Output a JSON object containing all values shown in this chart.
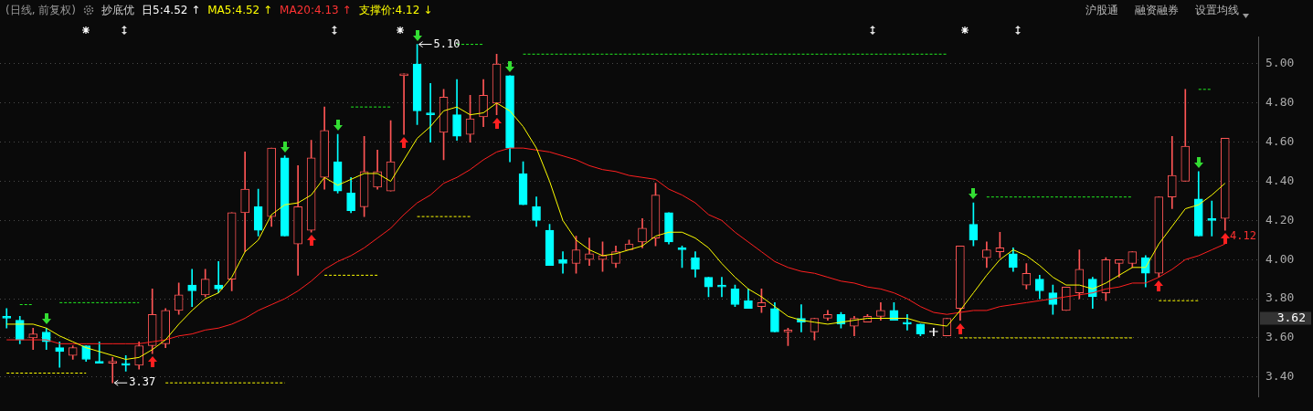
{
  "chart_data": {
    "type": "candlestick",
    "subtitle": "(日线, 前复权)",
    "categories": [
      null,
      null,
      null,
      null,
      null,
      null,
      null,
      null,
      null,
      null,
      null,
      null,
      null,
      null,
      null,
      null,
      null,
      null,
      null,
      null,
      null,
      null,
      null,
      null,
      null,
      null,
      null,
      null,
      null,
      null,
      null,
      null,
      null,
      null,
      null,
      null,
      null,
      null,
      null,
      null,
      null,
      null,
      null,
      null,
      null,
      null,
      null,
      null,
      null,
      null,
      null,
      null,
      null,
      null,
      null,
      null,
      null,
      null,
      null,
      null,
      null,
      null,
      null,
      null,
      null,
      null,
      null,
      null,
      null,
      null,
      null,
      null,
      null,
      null,
      null,
      null,
      null,
      null,
      null,
      null,
      null,
      null,
      null,
      null,
      null,
      null,
      null,
      null,
      null,
      null,
      null,
      null,
      null
    ],
    "ohlc": [
      [
        3.71,
        3.75,
        3.65,
        3.7
      ],
      [
        3.69,
        3.71,
        3.57,
        3.59
      ],
      [
        3.6,
        3.65,
        3.54,
        3.62
      ],
      [
        3.63,
        3.65,
        3.54,
        3.58
      ],
      [
        3.55,
        3.58,
        3.45,
        3.53
      ],
      [
        3.51,
        3.56,
        3.49,
        3.55
      ],
      [
        3.56,
        3.56,
        3.48,
        3.49
      ],
      [
        3.48,
        3.58,
        3.47,
        3.47
      ],
      [
        3.47,
        3.5,
        3.37,
        3.48
      ],
      [
        3.47,
        3.51,
        3.43,
        3.46
      ],
      [
        3.46,
        3.58,
        3.44,
        3.56
      ],
      [
        3.56,
        3.85,
        3.52,
        3.72
      ],
      [
        3.57,
        3.75,
        3.55,
        3.74
      ],
      [
        3.74,
        3.88,
        3.72,
        3.82
      ],
      [
        3.87,
        3.95,
        3.76,
        3.84
      ],
      [
        3.82,
        3.95,
        3.81,
        3.9
      ],
      [
        3.87,
        3.99,
        3.83,
        3.85
      ],
      [
        3.9,
        4.24,
        3.84,
        4.24
      ],
      [
        4.24,
        4.55,
        4.04,
        4.36
      ],
      [
        4.27,
        4.36,
        4.12,
        4.15
      ],
      [
        4.22,
        4.57,
        4.17,
        4.57
      ],
      [
        4.52,
        4.53,
        4.12,
        4.12
      ],
      [
        4.08,
        4.48,
        3.92,
        4.27
      ],
      [
        4.15,
        4.61,
        4.14,
        4.52
      ],
      [
        4.42,
        4.78,
        4.36,
        4.66
      ],
      [
        4.5,
        4.64,
        4.34,
        4.35
      ],
      [
        4.34,
        4.42,
        4.24,
        4.25
      ],
      [
        4.27,
        4.63,
        4.22,
        4.45
      ],
      [
        4.37,
        4.56,
        4.36,
        4.45
      ],
      [
        4.35,
        4.71,
        4.35,
        4.5
      ],
      [
        4.94,
        4.95,
        4.64,
        4.95
      ],
      [
        5.0,
        5.1,
        4.69,
        4.76
      ],
      [
        4.75,
        4.9,
        4.6,
        4.74
      ],
      [
        4.65,
        4.87,
        4.51,
        4.83
      ],
      [
        4.74,
        4.92,
        4.61,
        4.63
      ],
      [
        4.64,
        4.84,
        4.6,
        4.72
      ],
      [
        4.73,
        4.92,
        4.68,
        4.84
      ],
      [
        4.8,
        5.05,
        4.74,
        5.0
      ],
      [
        4.94,
        4.94,
        4.5,
        4.57
      ],
      [
        4.44,
        4.5,
        4.28,
        4.28
      ],
      [
        4.27,
        4.32,
        4.17,
        4.2
      ],
      [
        4.15,
        4.18,
        3.97,
        3.97
      ],
      [
        4.0,
        4.04,
        3.93,
        3.98
      ],
      [
        3.98,
        4.12,
        3.93,
        4.05
      ],
      [
        4.0,
        4.11,
        3.97,
        4.03
      ],
      [
        4.0,
        4.09,
        3.94,
        4.02
      ],
      [
        3.98,
        4.07,
        3.96,
        4.04
      ],
      [
        4.05,
        4.1,
        4.05,
        4.08
      ],
      [
        4.09,
        4.21,
        4.06,
        4.16
      ],
      [
        4.11,
        4.39,
        4.07,
        4.33
      ],
      [
        4.24,
        4.24,
        4.08,
        4.09
      ],
      [
        4.06,
        4.07,
        3.96,
        4.05
      ],
      [
        4.01,
        4.04,
        3.91,
        3.95
      ],
      [
        3.91,
        3.91,
        3.81,
        3.86
      ],
      [
        3.87,
        3.91,
        3.81,
        3.86
      ],
      [
        3.85,
        3.87,
        3.76,
        3.77
      ],
      [
        3.79,
        3.85,
        3.75,
        3.75
      ],
      [
        3.76,
        3.85,
        3.73,
        3.78
      ],
      [
        3.75,
        3.78,
        3.63,
        3.63
      ],
      [
        3.63,
        3.65,
        3.56,
        3.64
      ],
      [
        3.7,
        3.77,
        3.63,
        3.68
      ],
      [
        3.63,
        3.7,
        3.59,
        3.7
      ],
      [
        3.7,
        3.74,
        3.69,
        3.72
      ],
      [
        3.72,
        3.73,
        3.65,
        3.67
      ],
      [
        3.66,
        3.71,
        3.61,
        3.7
      ],
      [
        3.68,
        3.72,
        3.68,
        3.71
      ],
      [
        3.71,
        3.78,
        3.69,
        3.74
      ],
      [
        3.74,
        3.78,
        3.69,
        3.69
      ],
      [
        3.68,
        3.72,
        3.64,
        3.67
      ],
      [
        3.67,
        3.67,
        3.61,
        3.62
      ],
      [
        3.63,
        3.65,
        3.61,
        3.63
      ],
      [
        3.61,
        3.7,
        3.61,
        3.7
      ],
      [
        3.75,
        4.07,
        3.69,
        4.07
      ],
      [
        4.18,
        4.29,
        4.07,
        4.1
      ],
      [
        4.01,
        4.09,
        3.96,
        4.05
      ],
      [
        4.04,
        4.14,
        4.01,
        4.06
      ],
      [
        4.03,
        4.06,
        3.94,
        3.96
      ],
      [
        3.87,
        3.98,
        3.85,
        3.93
      ],
      [
        3.9,
        3.92,
        3.8,
        3.84
      ],
      [
        3.83,
        3.87,
        3.72,
        3.77
      ],
      [
        3.74,
        3.86,
        3.74,
        3.86
      ],
      [
        3.83,
        4.05,
        3.8,
        3.95
      ],
      [
        3.9,
        3.91,
        3.75,
        3.81
      ],
      [
        3.83,
        4.01,
        3.79,
        4.0
      ],
      [
        3.98,
        4.0,
        3.91,
        4.0
      ],
      [
        3.98,
        4.04,
        3.96,
        4.04
      ],
      [
        4.01,
        4.02,
        3.86,
        3.93
      ],
      [
        3.93,
        4.32,
        3.91,
        4.32
      ],
      [
        4.32,
        4.63,
        4.26,
        4.43
      ],
      [
        4.4,
        4.87,
        4.4,
        4.58
      ],
      [
        4.31,
        4.45,
        4.12,
        4.12
      ],
      [
        4.21,
        4.3,
        4.12,
        4.2
      ],
      [
        4.21,
        4.62,
        4.15,
        4.62
      ]
    ],
    "colors": [
      "#00ffff",
      "#00ffff",
      "#ff5555",
      "#00ffff",
      "#00ffff",
      "#ff5555",
      "#00ffff",
      "#00ffff",
      "#ff5555",
      "#00ffff",
      "#ff5555",
      "#ff5555",
      "#ff5555",
      "#ff5555",
      "#00ffff",
      "#ff5555",
      "#00ffff",
      "#ff5555",
      "#ff5555",
      "#00ffff",
      "#ff5555",
      "#00ffff",
      "#ff5555",
      "#ff5555",
      "#ff5555",
      "#00ffff",
      "#00ffff",
      "#ff5555",
      "#ff5555",
      "#ff5555",
      "#ff5555",
      "#00ffff",
      "#00ffff",
      "#ff5555",
      "#00ffff",
      "#ff5555",
      "#ff5555",
      "#ff5555",
      "#00ffff",
      "#00ffff",
      "#00ffff",
      "#00ffff",
      "#00ffff",
      "#ff5555",
      "#ff5555",
      "#ff5555",
      "#ff5555",
      "#ff5555",
      "#ff5555",
      "#ff5555",
      "#00ffff",
      "#00ffff",
      "#00ffff",
      "#00ffff",
      "#00ffff",
      "#00ffff",
      "#00ffff",
      "#ff5555",
      "#00ffff",
      "#ff5555",
      "#00ffff",
      "#ff5555",
      "#ff5555",
      "#00ffff",
      "#ff5555",
      "#ff5555",
      "#ff5555",
      "#00ffff",
      "#00ffff",
      "#00ffff",
      "#ffffff",
      "#ff5555",
      "#ff5555",
      "#00ffff",
      "#ff5555",
      "#ff5555",
      "#00ffff",
      "#ff5555",
      "#00ffff",
      "#00ffff",
      "#ff5555",
      "#ff5555",
      "#00ffff",
      "#ff5555",
      "#ff5555",
      "#ff5555",
      "#00ffff",
      "#ff5555",
      "#ff5555",
      "#ff5555",
      "#00ffff",
      "#00ffff",
      "#ff5555"
    ],
    "series": [
      {
        "type": "line",
        "color": "#ffff00",
        "values": [
          3.67,
          3.67,
          3.67,
          3.65,
          3.61,
          3.58,
          3.55,
          3.53,
          3.51,
          3.49,
          3.5,
          3.54,
          3.59,
          3.67,
          3.74,
          3.8,
          3.83,
          3.91,
          4.04,
          4.1,
          4.23,
          4.28,
          4.29,
          4.33,
          4.42,
          4.38,
          4.41,
          4.44,
          4.44,
          4.4,
          4.51,
          4.62,
          4.68,
          4.76,
          4.78,
          4.74,
          4.75,
          4.8,
          4.76,
          4.68,
          4.57,
          4.4,
          4.2,
          4.1,
          4.05,
          4.02,
          4.03,
          4.05,
          4.07,
          4.12,
          4.14,
          4.14,
          4.11,
          4.06,
          3.98,
          3.91,
          3.85,
          3.81,
          3.76,
          3.71,
          3.69,
          3.68,
          3.67,
          3.68,
          3.69,
          3.7,
          3.7,
          3.7,
          3.7,
          3.68,
          3.67,
          3.66,
          3.74,
          3.83,
          3.92,
          4.0,
          4.05,
          4.02,
          3.97,
          3.91,
          3.87,
          3.87,
          3.85,
          3.88,
          3.92,
          3.96,
          3.96,
          4.08,
          4.17,
          4.26,
          4.28,
          4.33,
          4.39
        ]
      },
      {
        "type": "line",
        "color": "#ff2020",
        "values": [
          3.59,
          3.59,
          3.59,
          3.59,
          3.57,
          3.57,
          3.57,
          3.57,
          3.57,
          3.57,
          3.57,
          3.58,
          3.59,
          3.61,
          3.62,
          3.64,
          3.65,
          3.67,
          3.7,
          3.74,
          3.77,
          3.8,
          3.84,
          3.89,
          3.95,
          3.99,
          4.02,
          4.06,
          4.11,
          4.16,
          4.23,
          4.29,
          4.33,
          4.39,
          4.42,
          4.46,
          4.51,
          4.55,
          4.57,
          4.57,
          4.56,
          4.55,
          4.53,
          4.51,
          4.48,
          4.46,
          4.45,
          4.43,
          4.42,
          4.41,
          4.36,
          4.33,
          4.29,
          4.23,
          4.2,
          4.14,
          4.09,
          4.04,
          3.99,
          3.96,
          3.94,
          3.93,
          3.91,
          3.89,
          3.88,
          3.86,
          3.85,
          3.83,
          3.8,
          3.76,
          3.73,
          3.72,
          3.73,
          3.74,
          3.74,
          3.76,
          3.77,
          3.78,
          3.79,
          3.8,
          3.81,
          3.82,
          3.83,
          3.85,
          3.86,
          3.88,
          3.88,
          3.91,
          3.95,
          4.0,
          4.02,
          4.05,
          4.08
        ]
      },
      {
        "type": "line",
        "color": "#22ee22",
        "line_style": "dashed",
        "values": [
          null,
          3.77,
          3.77,
          null,
          null,
          null,
          null,
          null,
          null,
          null,
          null,
          null,
          null,
          null,
          null,
          null,
          null,
          null,
          null,
          null,
          null,
          null,
          null,
          null,
          null,
          null,
          null,
          null,
          null,
          null,
          null,
          null,
          null,
          null,
          null,
          null,
          null,
          null,
          null,
          null,
          null,
          null,
          null,
          null,
          null,
          null,
          null,
          null,
          null,
          null,
          null,
          null,
          null,
          null,
          null,
          null,
          null,
          null,
          null,
          null,
          null,
          null,
          null,
          null,
          null,
          null,
          null,
          null,
          null,
          null,
          null,
          null,
          null,
          null,
          null,
          null,
          null,
          null,
          null,
          null,
          null,
          null,
          null,
          null,
          null,
          null,
          null,
          null,
          null,
          null,
          null,
          null,
          null
        ]
      },
      {
        "type": "line",
        "color": "#22ee22",
        "line_style": "dashed",
        "values": [
          null,
          null,
          null,
          null,
          3.78,
          3.78,
          3.78,
          3.78,
          3.78,
          3.78,
          3.78,
          null,
          null,
          null,
          null,
          null,
          null,
          null,
          null,
          null,
          null,
          null,
          null,
          null,
          null,
          null,
          null,
          null,
          null,
          null,
          null,
          null,
          null,
          null,
          null,
          null,
          null,
          null,
          null,
          null,
          null,
          null,
          null,
          null,
          null,
          null,
          null,
          null,
          null,
          null,
          null,
          null,
          null,
          null,
          null,
          null,
          null,
          null,
          null,
          null,
          null,
          null,
          null,
          null,
          null,
          null,
          null,
          null,
          null,
          null,
          null,
          null,
          null,
          null,
          null,
          null,
          null,
          null,
          null,
          null,
          null,
          null,
          null,
          null,
          null,
          null,
          null,
          null,
          null,
          null,
          null,
          null,
          null
        ]
      },
      {
        "type": "line",
        "color": "#22ee22",
        "line_style": "dashed",
        "values": [
          null,
          null,
          null,
          null,
          null,
          null,
          null,
          null,
          null,
          null,
          null,
          null,
          null,
          null,
          null,
          null,
          null,
          null,
          null,
          null,
          null,
          null,
          null,
          null,
          null,
          null,
          4.78,
          4.78,
          4.78,
          4.78,
          null,
          null,
          null,
          null,
          null,
          null,
          null,
          null,
          null,
          null,
          null,
          null,
          null,
          null,
          null,
          null,
          null,
          null,
          null,
          null,
          null,
          null,
          null,
          null,
          null,
          null,
          null,
          null,
          null,
          null,
          null,
          null,
          null,
          null,
          null,
          null,
          null,
          null,
          null,
          null,
          null,
          null,
          null,
          null,
          null,
          null,
          null,
          null,
          null,
          null,
          null,
          null,
          null,
          null,
          null,
          null,
          null,
          null,
          null,
          null,
          null,
          null,
          null
        ]
      },
      {
        "type": "line",
        "color": "#22ee22",
        "line_style": "dashed",
        "values": [
          null,
          null,
          null,
          null,
          null,
          null,
          null,
          null,
          null,
          null,
          null,
          null,
          null,
          null,
          null,
          null,
          null,
          null,
          null,
          null,
          null,
          null,
          null,
          null,
          null,
          null,
          null,
          null,
          null,
          null,
          null,
          null,
          null,
          null,
          5.1,
          5.1,
          5.1,
          null,
          null,
          null,
          null,
          null,
          null,
          null,
          null,
          null,
          null,
          null,
          null,
          null,
          null,
          null,
          null,
          null,
          null,
          null,
          null,
          null,
          null,
          null,
          null,
          null,
          null,
          null,
          null,
          null,
          null,
          null,
          null,
          null,
          null,
          null,
          null,
          null,
          null,
          null,
          null,
          null,
          null,
          null,
          null,
          null,
          null,
          null,
          null,
          null,
          null,
          null,
          null,
          null,
          null,
          null,
          null
        ]
      },
      {
        "type": "line",
        "color": "#22ee22",
        "line_style": "dashed",
        "values": [
          null,
          null,
          null,
          null,
          null,
          null,
          null,
          null,
          null,
          null,
          null,
          null,
          null,
          null,
          null,
          null,
          null,
          null,
          null,
          null,
          null,
          null,
          null,
          null,
          null,
          null,
          null,
          null,
          null,
          null,
          null,
          null,
          null,
          null,
          null,
          null,
          null,
          null,
          null,
          5.05,
          5.05,
          5.05,
          5.05,
          5.05,
          5.05,
          5.05,
          5.05,
          5.05,
          5.05,
          5.05,
          5.05,
          5.05,
          5.05,
          5.05,
          5.05,
          5.05,
          5.05,
          5.05,
          5.05,
          5.05,
          5.05,
          5.05,
          5.05,
          5.05,
          5.05,
          5.05,
          5.05,
          5.05,
          5.05,
          5.05,
          5.05,
          5.05,
          null,
          null,
          null,
          null,
          null,
          null,
          null,
          null,
          null,
          null,
          null,
          null,
          null,
          null,
          null,
          null,
          null,
          null,
          null,
          null,
          null
        ]
      },
      {
        "type": "line",
        "color": "#22ee22",
        "line_style": "dashed",
        "values": [
          null,
          null,
          null,
          null,
          null,
          null,
          null,
          null,
          null,
          null,
          null,
          null,
          null,
          null,
          null,
          null,
          null,
          null,
          null,
          null,
          null,
          null,
          null,
          null,
          null,
          null,
          null,
          null,
          null,
          null,
          null,
          null,
          null,
          null,
          null,
          null,
          null,
          null,
          null,
          null,
          null,
          null,
          null,
          null,
          null,
          null,
          null,
          null,
          null,
          null,
          null,
          null,
          null,
          null,
          null,
          null,
          null,
          null,
          null,
          null,
          null,
          null,
          null,
          null,
          null,
          null,
          null,
          null,
          null,
          null,
          null,
          null,
          null,
          null,
          4.32,
          4.32,
          4.32,
          4.32,
          4.32,
          4.32,
          4.32,
          4.32,
          4.32,
          4.32,
          4.32,
          4.32,
          null,
          null,
          null,
          null,
          null,
          null,
          null
        ]
      },
      {
        "type": "line",
        "color": "#22ee22",
        "line_style": "dashed",
        "values": [
          null,
          null,
          null,
          null,
          null,
          null,
          null,
          null,
          null,
          null,
          null,
          null,
          null,
          null,
          null,
          null,
          null,
          null,
          null,
          null,
          null,
          null,
          null,
          null,
          null,
          null,
          null,
          null,
          null,
          null,
          null,
          null,
          null,
          null,
          null,
          null,
          null,
          null,
          null,
          null,
          null,
          null,
          null,
          null,
          null,
          null,
          null,
          null,
          null,
          null,
          null,
          null,
          null,
          null,
          null,
          null,
          null,
          null,
          null,
          null,
          null,
          null,
          null,
          null,
          null,
          null,
          null,
          null,
          null,
          null,
          null,
          null,
          null,
          null,
          null,
          null,
          null,
          null,
          null,
          null,
          null,
          null,
          null,
          null,
          null,
          null,
          null,
          null,
          null,
          null,
          4.87,
          4.87,
          null
        ]
      },
      {
        "type": "line",
        "color": "#ffff00",
        "line_style": "dashed",
        "values": [
          3.42,
          3.42,
          3.42,
          3.42,
          3.42,
          3.42,
          3.42,
          null,
          null,
          null,
          null,
          null,
          null,
          null,
          null,
          null,
          null,
          null,
          null,
          null,
          null,
          null,
          null,
          null,
          null,
          null,
          null,
          null,
          null,
          null,
          null,
          null,
          null,
          null,
          null,
          null,
          null,
          null,
          null,
          null,
          null,
          null,
          null,
          null,
          null,
          null,
          null,
          null,
          null,
          null,
          null,
          null,
          null,
          null,
          null,
          null,
          null,
          null,
          null,
          null,
          null,
          null,
          null,
          null,
          null,
          null,
          null,
          null,
          null,
          null,
          null,
          null,
          null,
          null,
          null,
          null,
          null,
          null,
          null,
          null,
          null,
          null,
          null,
          null,
          null,
          null,
          null,
          null,
          null,
          null,
          null,
          null,
          null
        ]
      },
      {
        "type": "line",
        "color": "#ffff00",
        "line_style": "dashed",
        "values": [
          null,
          null,
          null,
          null,
          null,
          null,
          null,
          null,
          null,
          null,
          null,
          null,
          3.37,
          3.37,
          3.37,
          3.37,
          3.37,
          3.37,
          3.37,
          3.37,
          3.37,
          3.37,
          null,
          null,
          null,
          null,
          null,
          null,
          null,
          null,
          null,
          null,
          null,
          null,
          null,
          null,
          null,
          null,
          null,
          null,
          null,
          null,
          null,
          null,
          null,
          null,
          null,
          null,
          null,
          null,
          null,
          null,
          null,
          null,
          null,
          null,
          null,
          null,
          null,
          null,
          null,
          null,
          null,
          null,
          null,
          null,
          null,
          null,
          null,
          null,
          null,
          null,
          null,
          null,
          null,
          null,
          null,
          null,
          null,
          null,
          null,
          null,
          null,
          null,
          null,
          null,
          null,
          null,
          null,
          null,
          null,
          null,
          null
        ]
      },
      {
        "type": "line",
        "color": "#ffff00",
        "line_style": "dashed",
        "values": [
          null,
          null,
          null,
          null,
          null,
          null,
          null,
          null,
          null,
          null,
          null,
          null,
          null,
          null,
          null,
          null,
          null,
          null,
          null,
          null,
          null,
          null,
          null,
          null,
          3.92,
          3.92,
          3.92,
          3.92,
          3.92,
          null,
          null,
          null,
          null,
          null,
          null,
          null,
          null,
          null,
          null,
          null,
          null,
          null,
          null,
          null,
          null,
          null,
          null,
          null,
          null,
          null,
          null,
          null,
          null,
          null,
          null,
          null,
          null,
          null,
          null,
          null,
          null,
          null,
          null,
          null,
          null,
          null,
          null,
          null,
          null,
          null,
          null,
          null,
          null,
          null,
          null,
          null,
          null,
          null,
          null,
          null,
          null,
          null,
          null,
          null,
          null,
          null,
          null,
          null,
          null,
          null,
          null,
          null,
          null
        ]
      },
      {
        "type": "line",
        "color": "#ffff00",
        "line_style": "dashed",
        "values": [
          null,
          null,
          null,
          null,
          null,
          null,
          null,
          null,
          null,
          null,
          null,
          null,
          null,
          null,
          null,
          null,
          null,
          null,
          null,
          null,
          null,
          null,
          null,
          null,
          null,
          null,
          null,
          null,
          null,
          null,
          null,
          4.22,
          4.22,
          4.22,
          4.22,
          4.22,
          null,
          null,
          null,
          null,
          null,
          null,
          null,
          null,
          null,
          null,
          null,
          null,
          null,
          null,
          null,
          null,
          null,
          null,
          null,
          null,
          null,
          null,
          null,
          null,
          null,
          null,
          null,
          null,
          null,
          null,
          null,
          null,
          null,
          null,
          null,
          null,
          null,
          null,
          null,
          null,
          null,
          null,
          null,
          null,
          null,
          null,
          null,
          null,
          null,
          null,
          null,
          null,
          null,
          null,
          null,
          null,
          null
        ]
      },
      {
        "type": "line",
        "color": "#ffff00",
        "line_style": "dashed",
        "values": [
          null,
          null,
          null,
          null,
          null,
          null,
          null,
          null,
          null,
          null,
          null,
          null,
          null,
          null,
          null,
          null,
          null,
          null,
          null,
          null,
          null,
          null,
          null,
          null,
          null,
          null,
          null,
          null,
          null,
          null,
          null,
          null,
          null,
          null,
          null,
          null,
          null,
          null,
          null,
          null,
          null,
          null,
          null,
          null,
          null,
          null,
          null,
          null,
          null,
          null,
          null,
          null,
          null,
          null,
          null,
          null,
          null,
          null,
          null,
          null,
          null,
          null,
          null,
          null,
          null,
          null,
          null,
          null,
          null,
          null,
          null,
          null,
          3.6,
          3.6,
          3.6,
          3.6,
          3.6,
          3.6,
          3.6,
          3.6,
          3.6,
          3.6,
          3.6,
          3.6,
          3.6,
          3.6,
          null,
          null,
          null,
          null,
          null,
          null,
          null
        ]
      },
      {
        "type": "line",
        "color": "#ffff00",
        "line_style": "dashed",
        "values": [
          null,
          null,
          null,
          null,
          null,
          null,
          null,
          null,
          null,
          null,
          null,
          null,
          null,
          null,
          null,
          null,
          null,
          null,
          null,
          null,
          null,
          null,
          null,
          null,
          null,
          null,
          null,
          null,
          null,
          null,
          null,
          null,
          null,
          null,
          null,
          null,
          null,
          null,
          null,
          null,
          null,
          null,
          null,
          null,
          null,
          null,
          null,
          null,
          null,
          null,
          null,
          null,
          null,
          null,
          null,
          null,
          null,
          null,
          null,
          null,
          null,
          null,
          null,
          null,
          null,
          null,
          null,
          null,
          null,
          null,
          null,
          null,
          null,
          null,
          null,
          null,
          null,
          null,
          null,
          null,
          null,
          null,
          null,
          null,
          null,
          null,
          null,
          3.79,
          3.79,
          3.79,
          3.79,
          null,
          null
        ]
      }
    ],
    "ylim": [
      3.3,
      5.14
    ],
    "yticks": [
      {
        "value": 3.4,
        "label": "3.40"
      },
      {
        "value": 3.6,
        "label": "3.60"
      },
      {
        "value": 3.8,
        "label": "3.80"
      },
      {
        "value": 4,
        "label": "4.00"
      },
      {
        "value": 4.2,
        "label": "4.20"
      },
      {
        "value": 4.4,
        "label": "4.40"
      },
      {
        "value": 4.6,
        "label": "4.60"
      },
      {
        "value": 4.8,
        "label": "4.80"
      },
      {
        "value": 5,
        "label": "5.00"
      }
    ],
    "grid": "y",
    "legend": false,
    "tick_labels": "y",
    "annotations": [
      "抄底优",
      "日5:4.52 ↑",
      "MA5:4.52 ↑",
      "MA20:4.13 ↑",
      "支撑价:4.12 ↓",
      "沪股通",
      "融资融券",
      "设置均线",
      "5.10",
      "3.37",
      "3.62",
      {
        "text": "4.12",
        "y": 4.12
      }
    ]
  }
}
